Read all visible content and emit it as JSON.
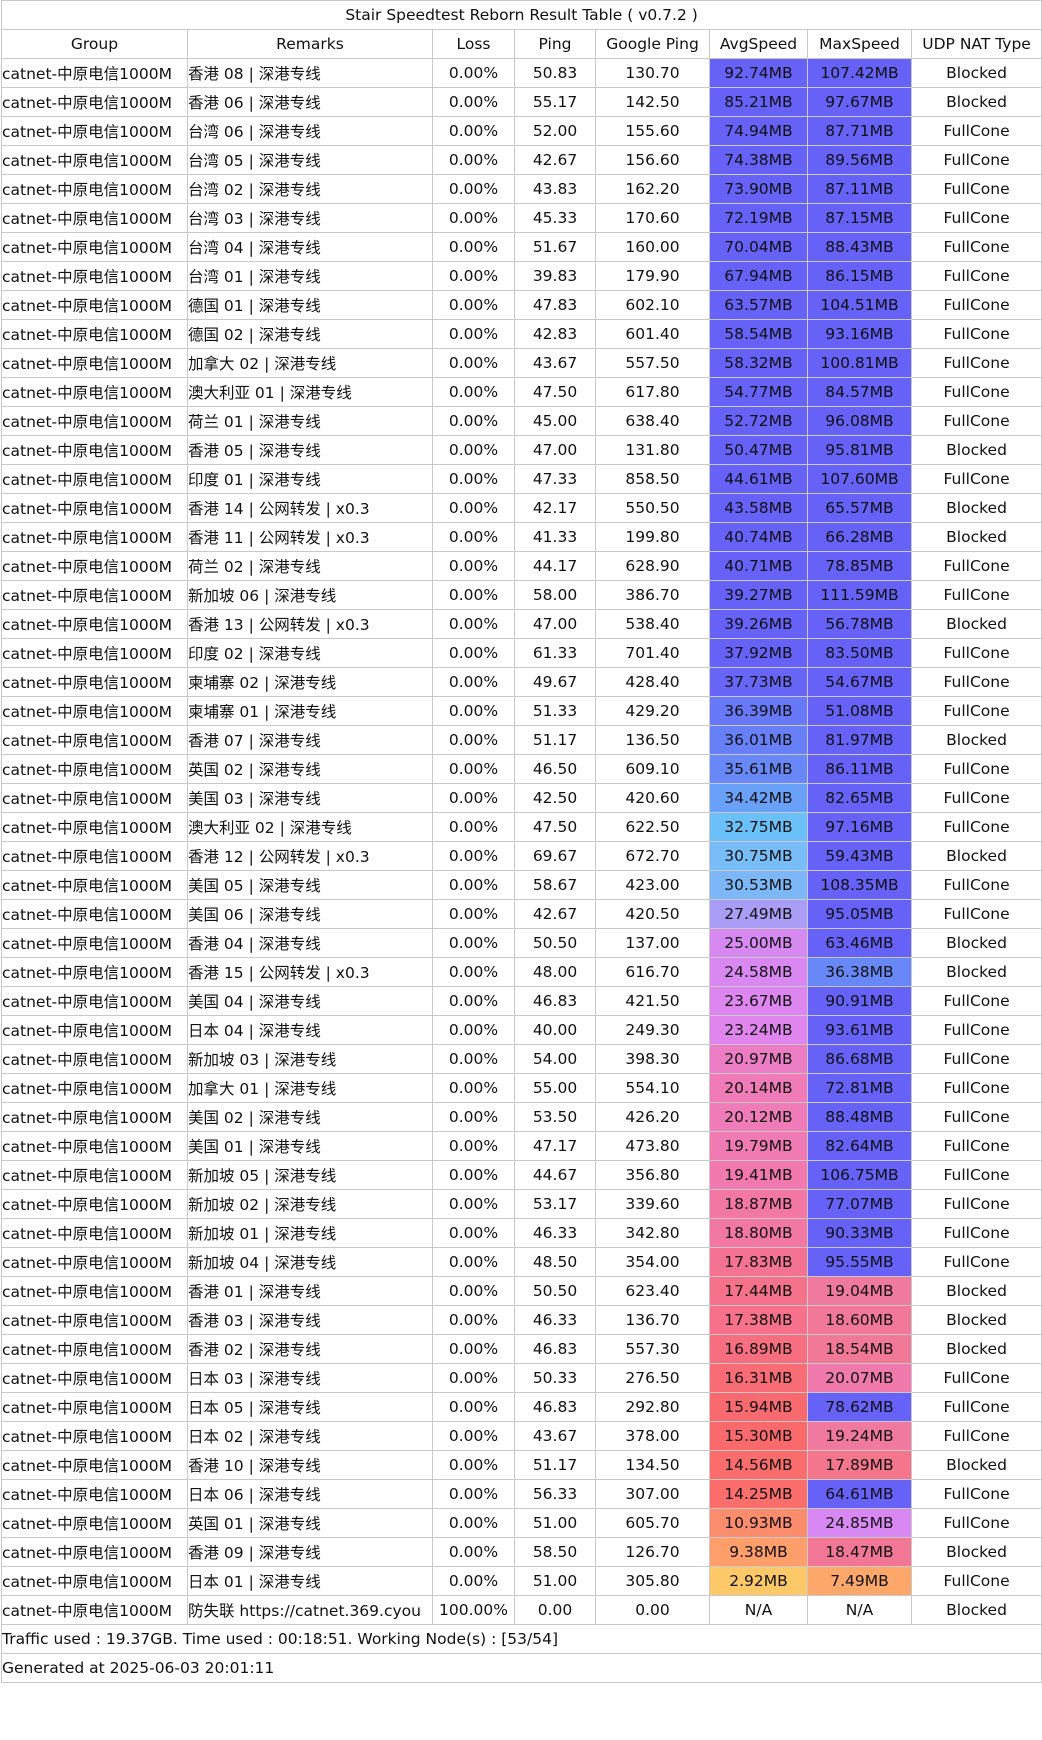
{
  "title": "Stair Speedtest Reborn Result Table ( v0.7.2 )",
  "headers": [
    "Group",
    "Remarks",
    "Loss",
    "Ping",
    "Google Ping",
    "AvgSpeed",
    "MaxSpeed",
    "UDP NAT Type"
  ],
  "rows": [
    {
      "group": "catnet-中原电信1000M",
      "remarks": "香港 08 | 深港专线",
      "loss": "0.00%",
      "ping": "50.83",
      "gping": "130.70",
      "avg": "92.74MB",
      "max": "107.42MB",
      "nat": "Blocked",
      "avgColor": "#6661f7",
      "maxColor": "#6661f7"
    },
    {
      "group": "catnet-中原电信1000M",
      "remarks": "香港 06 | 深港专线",
      "loss": "0.00%",
      "ping": "55.17",
      "gping": "142.50",
      "avg": "85.21MB",
      "max": "97.67MB",
      "nat": "Blocked",
      "avgColor": "#6661f7",
      "maxColor": "#6661f7"
    },
    {
      "group": "catnet-中原电信1000M",
      "remarks": "台湾 06 | 深港专线",
      "loss": "0.00%",
      "ping": "52.00",
      "gping": "155.60",
      "avg": "74.94MB",
      "max": "87.71MB",
      "nat": "FullCone",
      "avgColor": "#6661f7",
      "maxColor": "#6661f7"
    },
    {
      "group": "catnet-中原电信1000M",
      "remarks": "台湾 05 | 深港专线",
      "loss": "0.00%",
      "ping": "42.67",
      "gping": "156.60",
      "avg": "74.38MB",
      "max": "89.56MB",
      "nat": "FullCone",
      "avgColor": "#6661f7",
      "maxColor": "#6661f7"
    },
    {
      "group": "catnet-中原电信1000M",
      "remarks": "台湾 02 | 深港专线",
      "loss": "0.00%",
      "ping": "43.83",
      "gping": "162.20",
      "avg": "73.90MB",
      "max": "87.11MB",
      "nat": "FullCone",
      "avgColor": "#6661f7",
      "maxColor": "#6661f7"
    },
    {
      "group": "catnet-中原电信1000M",
      "remarks": "台湾 03 | 深港专线",
      "loss": "0.00%",
      "ping": "45.33",
      "gping": "170.60",
      "avg": "72.19MB",
      "max": "87.15MB",
      "nat": "FullCone",
      "avgColor": "#6661f7",
      "maxColor": "#6661f7"
    },
    {
      "group": "catnet-中原电信1000M",
      "remarks": "台湾 04 | 深港专线",
      "loss": "0.00%",
      "ping": "51.67",
      "gping": "160.00",
      "avg": "70.04MB",
      "max": "88.43MB",
      "nat": "FullCone",
      "avgColor": "#6661f7",
      "maxColor": "#6661f7"
    },
    {
      "group": "catnet-中原电信1000M",
      "remarks": "台湾 01 | 深港专线",
      "loss": "0.00%",
      "ping": "39.83",
      "gping": "179.90",
      "avg": "67.94MB",
      "max": "86.15MB",
      "nat": "FullCone",
      "avgColor": "#6661f7",
      "maxColor": "#6661f7"
    },
    {
      "group": "catnet-中原电信1000M",
      "remarks": "德国 01 | 深港专线",
      "loss": "0.00%",
      "ping": "47.83",
      "gping": "602.10",
      "avg": "63.57MB",
      "max": "104.51MB",
      "nat": "FullCone",
      "avgColor": "#6661f7",
      "maxColor": "#6661f7"
    },
    {
      "group": "catnet-中原电信1000M",
      "remarks": "德国 02 | 深港专线",
      "loss": "0.00%",
      "ping": "42.83",
      "gping": "601.40",
      "avg": "58.54MB",
      "max": "93.16MB",
      "nat": "FullCone",
      "avgColor": "#6661f7",
      "maxColor": "#6661f7"
    },
    {
      "group": "catnet-中原电信1000M",
      "remarks": "加拿大 02 | 深港专线",
      "loss": "0.00%",
      "ping": "43.67",
      "gping": "557.50",
      "avg": "58.32MB",
      "max": "100.81MB",
      "nat": "FullCone",
      "avgColor": "#6661f7",
      "maxColor": "#6661f7"
    },
    {
      "group": "catnet-中原电信1000M",
      "remarks": "澳大利亚 01 | 深港专线",
      "loss": "0.00%",
      "ping": "47.50",
      "gping": "617.80",
      "avg": "54.77MB",
      "max": "84.57MB",
      "nat": "FullCone",
      "avgColor": "#6661f7",
      "maxColor": "#6661f7"
    },
    {
      "group": "catnet-中原电信1000M",
      "remarks": "荷兰 01 | 深港专线",
      "loss": "0.00%",
      "ping": "45.00",
      "gping": "638.40",
      "avg": "52.72MB",
      "max": "96.08MB",
      "nat": "FullCone",
      "avgColor": "#6661f7",
      "maxColor": "#6661f7"
    },
    {
      "group": "catnet-中原电信1000M",
      "remarks": "香港 05 | 深港专线",
      "loss": "0.00%",
      "ping": "47.00",
      "gping": "131.80",
      "avg": "50.47MB",
      "max": "95.81MB",
      "nat": "Blocked",
      "avgColor": "#6661f7",
      "maxColor": "#6661f7"
    },
    {
      "group": "catnet-中原电信1000M",
      "remarks": "印度 01 | 深港专线",
      "loss": "0.00%",
      "ping": "47.33",
      "gping": "858.50",
      "avg": "44.61MB",
      "max": "107.60MB",
      "nat": "FullCone",
      "avgColor": "#6661f7",
      "maxColor": "#6661f7"
    },
    {
      "group": "catnet-中原电信1000M",
      "remarks": "香港 14 | 公网转发 | x0.3",
      "loss": "0.00%",
      "ping": "42.17",
      "gping": "550.50",
      "avg": "43.58MB",
      "max": "65.57MB",
      "nat": "Blocked",
      "avgColor": "#6661f7",
      "maxColor": "#6661f7"
    },
    {
      "group": "catnet-中原电信1000M",
      "remarks": "香港 11 | 公网转发 | x0.3",
      "loss": "0.00%",
      "ping": "41.33",
      "gping": "199.80",
      "avg": "40.74MB",
      "max": "66.28MB",
      "nat": "Blocked",
      "avgColor": "#6661f7",
      "maxColor": "#6661f7"
    },
    {
      "group": "catnet-中原电信1000M",
      "remarks": "荷兰 02 | 深港专线",
      "loss": "0.00%",
      "ping": "44.17",
      "gping": "628.90",
      "avg": "40.71MB",
      "max": "78.85MB",
      "nat": "FullCone",
      "avgColor": "#6661f7",
      "maxColor": "#6661f7"
    },
    {
      "group": "catnet-中原电信1000M",
      "remarks": "新加坡 06 | 深港专线",
      "loss": "0.00%",
      "ping": "58.00",
      "gping": "386.70",
      "avg": "39.27MB",
      "max": "111.59MB",
      "nat": "FullCone",
      "avgColor": "#6661f7",
      "maxColor": "#6661f7"
    },
    {
      "group": "catnet-中原电信1000M",
      "remarks": "香港 13 | 公网转发 | x0.3",
      "loss": "0.00%",
      "ping": "47.00",
      "gping": "538.40",
      "avg": "39.26MB",
      "max": "56.78MB",
      "nat": "Blocked",
      "avgColor": "#6661f7",
      "maxColor": "#6661f7"
    },
    {
      "group": "catnet-中原电信1000M",
      "remarks": "印度 02 | 深港专线",
      "loss": "0.00%",
      "ping": "61.33",
      "gping": "701.40",
      "avg": "37.92MB",
      "max": "83.50MB",
      "nat": "FullCone",
      "avgColor": "#6661f7",
      "maxColor": "#6661f7"
    },
    {
      "group": "catnet-中原电信1000M",
      "remarks": "柬埔寨 02 | 深港专线",
      "loss": "0.00%",
      "ping": "49.67",
      "gping": "428.40",
      "avg": "37.73MB",
      "max": "54.67MB",
      "nat": "FullCone",
      "avgColor": "#6766f7",
      "maxColor": "#6661f7"
    },
    {
      "group": "catnet-中原电信1000M",
      "remarks": "柬埔寨 01 | 深港专线",
      "loss": "0.00%",
      "ping": "51.33",
      "gping": "429.20",
      "avg": "36.39MB",
      "max": "51.08MB",
      "nat": "FullCone",
      "avgColor": "#6778f8",
      "maxColor": "#6661f7"
    },
    {
      "group": "catnet-中原电信1000M",
      "remarks": "香港 07 | 深港专线",
      "loss": "0.00%",
      "ping": "51.17",
      "gping": "136.50",
      "avg": "36.01MB",
      "max": "81.97MB",
      "nat": "Blocked",
      "avgColor": "#6780f8",
      "maxColor": "#6661f7"
    },
    {
      "group": "catnet-中原电信1000M",
      "remarks": "英国 02 | 深港专线",
      "loss": "0.00%",
      "ping": "46.50",
      "gping": "609.10",
      "avg": "35.61MB",
      "max": "86.11MB",
      "nat": "FullCone",
      "avgColor": "#6888f8",
      "maxColor": "#6661f7"
    },
    {
      "group": "catnet-中原电信1000M",
      "remarks": "美国 03 | 深港专线",
      "loss": "0.00%",
      "ping": "42.50",
      "gping": "420.60",
      "avg": "34.42MB",
      "max": "82.65MB",
      "nat": "FullCone",
      "avgColor": "#69a0f8",
      "maxColor": "#6661f7"
    },
    {
      "group": "catnet-中原电信1000M",
      "remarks": "澳大利亚 02 | 深港专线",
      "loss": "0.00%",
      "ping": "47.50",
      "gping": "622.50",
      "avg": "32.75MB",
      "max": "97.16MB",
      "nat": "FullCone",
      "avgColor": "#6cc0f9",
      "maxColor": "#6661f7"
    },
    {
      "group": "catnet-中原电信1000M",
      "remarks": "香港 12 | 公网转发 | x0.3",
      "loss": "0.00%",
      "ping": "69.67",
      "gping": "672.70",
      "avg": "30.75MB",
      "max": "59.43MB",
      "nat": "Blocked",
      "avgColor": "#78bcf8",
      "maxColor": "#6661f7"
    },
    {
      "group": "catnet-中原电信1000M",
      "remarks": "美国 05 | 深港专线",
      "loss": "0.00%",
      "ping": "58.67",
      "gping": "423.00",
      "avg": "30.53MB",
      "max": "108.35MB",
      "nat": "FullCone",
      "avgColor": "#7cb8f8",
      "maxColor": "#6661f7"
    },
    {
      "group": "catnet-中原电信1000M",
      "remarks": "美国 06 | 深港专线",
      "loss": "0.00%",
      "ping": "42.67",
      "gping": "420.50",
      "avg": "27.49MB",
      "max": "95.05MB",
      "nat": "FullCone",
      "avgColor": "#aa9df5",
      "maxColor": "#6661f7"
    },
    {
      "group": "catnet-中原电信1000M",
      "remarks": "香港 04 | 深港专线",
      "loss": "0.00%",
      "ping": "50.50",
      "gping": "137.00",
      "avg": "25.00MB",
      "max": "63.46MB",
      "nat": "Blocked",
      "avgColor": "#d789f2",
      "maxColor": "#6661f7"
    },
    {
      "group": "catnet-中原电信1000M",
      "remarks": "香港 15 | 公网转发 | x0.3",
      "loss": "0.00%",
      "ping": "48.00",
      "gping": "616.70",
      "avg": "24.58MB",
      "max": "36.38MB",
      "nat": "Blocked",
      "avgColor": "#d988f2",
      "maxColor": "#6988f8"
    },
    {
      "group": "catnet-中原电信1000M",
      "remarks": "美国 04 | 深港专线",
      "loss": "0.00%",
      "ping": "46.83",
      "gping": "421.50",
      "avg": "23.67MB",
      "max": "90.91MB",
      "nat": "FullCone",
      "avgColor": "#dd86ef",
      "maxColor": "#6661f7"
    },
    {
      "group": "catnet-中原电信1000M",
      "remarks": "日本 04 | 深港专线",
      "loss": "0.00%",
      "ping": "40.00",
      "gping": "249.30",
      "avg": "23.24MB",
      "max": "93.61MB",
      "nat": "FullCone",
      "avgColor": "#df85ed",
      "maxColor": "#6661f7"
    },
    {
      "group": "catnet-中原电信1000M",
      "remarks": "新加坡 03 | 深港专线",
      "loss": "0.00%",
      "ping": "54.00",
      "gping": "398.30",
      "avg": "20.97MB",
      "max": "86.68MB",
      "nat": "FullCone",
      "avgColor": "#ec7dc4",
      "maxColor": "#6661f7"
    },
    {
      "group": "catnet-中原电信1000M",
      "remarks": "加拿大 01 | 深港专线",
      "loss": "0.00%",
      "ping": "55.00",
      "gping": "554.10",
      "avg": "20.14MB",
      "max": "72.81MB",
      "nat": "FullCone",
      "avgColor": "#ef7bb8",
      "maxColor": "#6661f7"
    },
    {
      "group": "catnet-中原电信1000M",
      "remarks": "美国 02 | 深港专线",
      "loss": "0.00%",
      "ping": "53.50",
      "gping": "426.20",
      "avg": "20.12MB",
      "max": "88.48MB",
      "nat": "FullCone",
      "avgColor": "#ef7bb8",
      "maxColor": "#6661f7"
    },
    {
      "group": "catnet-中原电信1000M",
      "remarks": "美国 01 | 深港专线",
      "loss": "0.00%",
      "ping": "47.17",
      "gping": "473.80",
      "avg": "19.79MB",
      "max": "82.64MB",
      "nat": "FullCone",
      "avgColor": "#f07ab3",
      "maxColor": "#6661f7"
    },
    {
      "group": "catnet-中原电信1000M",
      "remarks": "新加坡 05 | 深港专线",
      "loss": "0.00%",
      "ping": "44.67",
      "gping": "356.80",
      "avg": "19.41MB",
      "max": "106.75MB",
      "nat": "FullCone",
      "avgColor": "#f179ad",
      "maxColor": "#6661f7"
    },
    {
      "group": "catnet-中原电信1000M",
      "remarks": "新加坡 02 | 深港专线",
      "loss": "0.00%",
      "ping": "53.17",
      "gping": "339.60",
      "avg": "18.87MB",
      "max": "77.07MB",
      "nat": "FullCone",
      "avgColor": "#f377a5",
      "maxColor": "#6661f7"
    },
    {
      "group": "catnet-中原电信1000M",
      "remarks": "新加坡 01 | 深港专线",
      "loss": "0.00%",
      "ping": "46.33",
      "gping": "342.80",
      "avg": "18.80MB",
      "max": "90.33MB",
      "nat": "FullCone",
      "avgColor": "#f377a4",
      "maxColor": "#6661f7"
    },
    {
      "group": "catnet-中原电信1000M",
      "remarks": "新加坡 04 | 深港专线",
      "loss": "0.00%",
      "ping": "48.50",
      "gping": "354.00",
      "avg": "17.83MB",
      "max": "95.55MB",
      "nat": "FullCone",
      "avgColor": "#f57392",
      "maxColor": "#6661f7"
    },
    {
      "group": "catnet-中原电信1000M",
      "remarks": "香港 01 | 深港专线",
      "loss": "0.00%",
      "ping": "50.50",
      "gping": "623.40",
      "avg": "17.44MB",
      "max": "19.04MB",
      "nat": "Blocked",
      "avgColor": "#f6718a",
      "maxColor": "#f0799e"
    },
    {
      "group": "catnet-中原电信1000M",
      "remarks": "香港 03 | 深港专线",
      "loss": "0.00%",
      "ping": "46.33",
      "gping": "136.70",
      "avg": "17.38MB",
      "max": "18.60MB",
      "nat": "Blocked",
      "avgColor": "#f67189",
      "maxColor": "#f17898"
    },
    {
      "group": "catnet-中原电信1000M",
      "remarks": "香港 02 | 深港专线",
      "loss": "0.00%",
      "ping": "46.83",
      "gping": "557.30",
      "avg": "16.89MB",
      "max": "18.54MB",
      "nat": "Blocked",
      "avgColor": "#f76e80",
      "maxColor": "#f17897"
    },
    {
      "group": "catnet-中原电信1000M",
      "remarks": "日本 03 | 深港专线",
      "loss": "0.00%",
      "ping": "50.33",
      "gping": "276.50",
      "avg": "16.31MB",
      "max": "20.07MB",
      "nat": "FullCone",
      "avgColor": "#f86c76",
      "maxColor": "#ef7aab"
    },
    {
      "group": "catnet-中原电信1000M",
      "remarks": "日本 05 | 深港专线",
      "loss": "0.00%",
      "ping": "46.83",
      "gping": "292.80",
      "avg": "15.94MB",
      "max": "78.62MB",
      "nat": "FullCone",
      "avgColor": "#f96a70",
      "maxColor": "#6661f7"
    },
    {
      "group": "catnet-中原电信1000M",
      "remarks": "日本 02 | 深港专线",
      "loss": "0.00%",
      "ping": "43.67",
      "gping": "378.00",
      "avg": "15.30MB",
      "max": "19.24MB",
      "nat": "FullCone",
      "avgColor": "#fa6a6c",
      "maxColor": "#f079a0"
    },
    {
      "group": "catnet-中原电信1000M",
      "remarks": "香港 10 | 深港专线",
      "loss": "0.00%",
      "ping": "51.17",
      "gping": "134.50",
      "avg": "14.56MB",
      "max": "17.89MB",
      "nat": "Blocked",
      "avgColor": "#fb6d6c",
      "maxColor": "#f3768d"
    },
    {
      "group": "catnet-中原电信1000M",
      "remarks": "日本 06 | 深港专线",
      "loss": "0.00%",
      "ping": "56.33",
      "gping": "307.00",
      "avg": "14.25MB",
      "max": "64.61MB",
      "nat": "FullCone",
      "avgColor": "#fb6e6c",
      "maxColor": "#6661f7"
    },
    {
      "group": "catnet-中原电信1000M",
      "remarks": "英国 01 | 深港专线",
      "loss": "0.00%",
      "ping": "51.00",
      "gping": "605.70",
      "avg": "10.93MB",
      "max": "24.85MB",
      "nat": "FullCone",
      "avgColor": "#fc8d6c",
      "maxColor": "#d888f2"
    },
    {
      "group": "catnet-中原电信1000M",
      "remarks": "香港 09 | 深港专线",
      "loss": "0.00%",
      "ping": "58.50",
      "gping": "126.70",
      "avg": "9.38MB",
      "max": "18.47MB",
      "nat": "Blocked",
      "avgColor": "#fd9e6b",
      "maxColor": "#f27796"
    },
    {
      "group": "catnet-中原电信1000M",
      "remarks": "日本 01 | 深港专线",
      "loss": "0.00%",
      "ping": "51.00",
      "gping": "305.80",
      "avg": "2.92MB",
      "max": "7.49MB",
      "nat": "FullCone",
      "avgColor": "#fdc868",
      "maxColor": "#fda76a"
    },
    {
      "group": "catnet-中原电信1000M",
      "remarks": "防失联 https://catnet.369.cyou",
      "loss": "100.00%",
      "ping": "0.00",
      "gping": "0.00",
      "avg": "N/A",
      "max": "N/A",
      "nat": "Blocked",
      "avgColor": "#ffffff",
      "maxColor": "#ffffff"
    }
  ],
  "footer": {
    "traffic": "Traffic used : 19.37GB. Time used : 00:18:51. Working Node(s) : [53/54]",
    "generated": "Generated at 2025-06-03 20:01:11"
  }
}
